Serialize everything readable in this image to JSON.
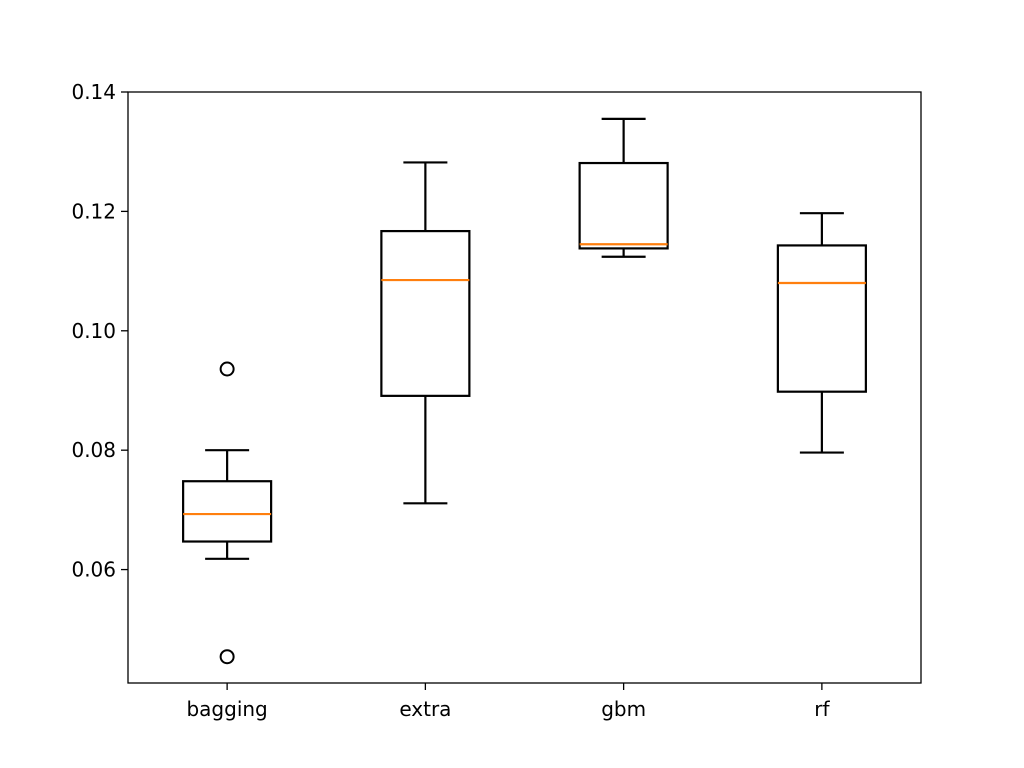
{
  "chart_data": {
    "type": "box",
    "title": "",
    "xlabel": "",
    "ylabel": "",
    "ylim": [
      0.041,
      0.14
    ],
    "y_ticks": [
      "0.06",
      "0.08",
      "0.10",
      "0.12",
      "0.14"
    ],
    "y_tick_values": [
      0.06,
      0.08,
      0.1,
      0.12,
      0.14
    ],
    "categories": [
      "bagging",
      "extra",
      "gbm",
      "rf"
    ],
    "boxes": [
      {
        "name": "bagging",
        "whisker_low": 0.0618,
        "q1": 0.0647,
        "median": 0.0693,
        "q3": 0.0748,
        "whisker_high": 0.08,
        "outliers": [
          0.0936,
          0.0454
        ]
      },
      {
        "name": "extra",
        "whisker_low": 0.0711,
        "q1": 0.0891,
        "median": 0.1085,
        "q3": 0.1167,
        "whisker_high": 0.1282,
        "outliers": []
      },
      {
        "name": "gbm",
        "whisker_low": 0.1124,
        "q1": 0.1138,
        "median": 0.1145,
        "q3": 0.1281,
        "whisker_high": 0.1355,
        "outliers": []
      },
      {
        "name": "rf",
        "whisker_low": 0.0796,
        "q1": 0.0898,
        "median": 0.108,
        "q3": 0.1143,
        "whisker_high": 0.1197,
        "outliers": []
      }
    ],
    "grid": false,
    "box_color": "#000000",
    "median_color": "#ff7f0e"
  }
}
